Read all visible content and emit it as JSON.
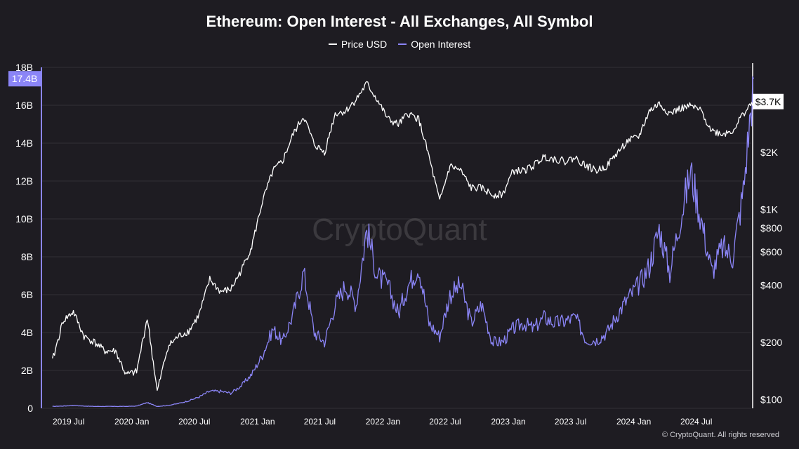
{
  "title": "Ethereum: Open Interest - All Exchanges, All Symbol",
  "legend": [
    {
      "label": "Price USD",
      "color": "#ffffff"
    },
    {
      "label": "Open Interest",
      "color": "#8b85f7"
    }
  ],
  "watermark": "CryptoQuant",
  "copyright": "© CryptoQuant. All rights reserved",
  "chart_data": {
    "type": "line",
    "title": "Ethereum: Open Interest - All Exchanges, All Symbol",
    "x_ticks": [
      "2019 Jul",
      "2020 Jan",
      "2020 Jul",
      "2021 Jan",
      "2021 Jul",
      "2022 Jan",
      "2022 Jul",
      "2023 Jan",
      "2023 Jul",
      "2024 Jan",
      "2024 Jul"
    ],
    "left_axis": {
      "ticks": [
        "0",
        "2B",
        "4B",
        "6B",
        "8B",
        "10B",
        "12B",
        "14B",
        "16B",
        "18B"
      ],
      "range": [
        0,
        18
      ],
      "unit": "B"
    },
    "right_axis": {
      "scale": "log",
      "ticks": [
        "$100",
        "$200",
        "$400",
        "$600",
        "$800",
        "$1K",
        "$2K"
      ],
      "tick_values": [
        100,
        200,
        400,
        600,
        800,
        1000,
        2000
      ],
      "range": [
        90,
        5600
      ]
    },
    "last_value_labels": {
      "left": "17.4B",
      "right": "$3.7K"
    },
    "grid": true,
    "colors": {
      "price": "#ffffff",
      "open_interest": "#8b85f7",
      "left_badge": "#8b85f7"
    },
    "series": [
      {
        "name": "Price USD",
        "axis": "right",
        "x": [
          "2019-05",
          "2019-06",
          "2019-07",
          "2019-08",
          "2019-09",
          "2019-10",
          "2019-11",
          "2019-12",
          "2020-01",
          "2020-02",
          "2020-03",
          "2020-04",
          "2020-05",
          "2020-06",
          "2020-07",
          "2020-08",
          "2020-09",
          "2020-10",
          "2020-11",
          "2020-12",
          "2021-01",
          "2021-02",
          "2021-03",
          "2021-04",
          "2021-05",
          "2021-06",
          "2021-07",
          "2021-08",
          "2021-09",
          "2021-10",
          "2021-11",
          "2021-12",
          "2022-01",
          "2022-02",
          "2022-03",
          "2022-04",
          "2022-05",
          "2022-06",
          "2022-07",
          "2022-08",
          "2022-09",
          "2022-10",
          "2022-11",
          "2022-12",
          "2023-01",
          "2023-02",
          "2023-03",
          "2023-04",
          "2023-05",
          "2023-06",
          "2023-07",
          "2023-08",
          "2023-09",
          "2023-10",
          "2023-11",
          "2023-12",
          "2024-01",
          "2024-02",
          "2024-03",
          "2024-04",
          "2024-05",
          "2024-06",
          "2024-07",
          "2024-08",
          "2024-09",
          "2024-10",
          "2024-11",
          "2024-12"
        ],
        "y": [
          160,
          260,
          290,
          215,
          200,
          180,
          180,
          135,
          140,
          270,
          110,
          190,
          215,
          230,
          280,
          430,
          370,
          380,
          480,
          640,
          1100,
          1600,
          1800,
          2500,
          3100,
          2200,
          2000,
          3200,
          3300,
          3800,
          4600,
          3800,
          3000,
          2800,
          3200,
          3000,
          1900,
          1100,
          1700,
          1600,
          1300,
          1300,
          1200,
          1200,
          1600,
          1600,
          1700,
          1900,
          1850,
          1800,
          1870,
          1700,
          1600,
          1700,
          2000,
          2300,
          2400,
          3300,
          3600,
          3200,
          3400,
          3500,
          3300,
          2600,
          2500,
          2600,
          3200,
          3700
        ]
      },
      {
        "name": "Open Interest",
        "axis": "left",
        "x": [
          "2019-05",
          "2019-06",
          "2019-07",
          "2019-08",
          "2019-09",
          "2019-10",
          "2019-11",
          "2019-12",
          "2020-01",
          "2020-02",
          "2020-03",
          "2020-04",
          "2020-05",
          "2020-06",
          "2020-07",
          "2020-08",
          "2020-09",
          "2020-10",
          "2020-11",
          "2020-12",
          "2021-01",
          "2021-02",
          "2021-03",
          "2021-04",
          "2021-05",
          "2021-06",
          "2021-07",
          "2021-08",
          "2021-09",
          "2021-10",
          "2021-11",
          "2021-12",
          "2022-01",
          "2022-02",
          "2022-03",
          "2022-04",
          "2022-05",
          "2022-06",
          "2022-07",
          "2022-08",
          "2022-09",
          "2022-10",
          "2022-11",
          "2022-12",
          "2023-01",
          "2023-02",
          "2023-03",
          "2023-04",
          "2023-05",
          "2023-06",
          "2023-07",
          "2023-08",
          "2023-09",
          "2023-10",
          "2023-11",
          "2023-12",
          "2024-01",
          "2024-02",
          "2024-03",
          "2024-04",
          "2024-05",
          "2024-06",
          "2024-07",
          "2024-08",
          "2024-09",
          "2024-10",
          "2024-11",
          "2024-12"
        ],
        "y": [
          0.1,
          0.12,
          0.15,
          0.12,
          0.1,
          0.1,
          0.1,
          0.1,
          0.12,
          0.3,
          0.1,
          0.15,
          0.25,
          0.4,
          0.6,
          0.9,
          0.9,
          0.8,
          1.2,
          1.8,
          2.8,
          4.2,
          3.5,
          5.0,
          7.2,
          4.0,
          3.5,
          5.5,
          6.5,
          5.5,
          9.5,
          7.0,
          6.5,
          5.0,
          6.5,
          7.5,
          4.5,
          3.8,
          6.0,
          6.5,
          4.5,
          5.5,
          3.5,
          3.5,
          4.2,
          4.5,
          4.2,
          4.8,
          4.5,
          4.6,
          4.8,
          3.6,
          3.6,
          4.0,
          5.0,
          5.8,
          6.5,
          7.5,
          9.5,
          7.2,
          10.0,
          12.5,
          10.0,
          7.2,
          8.5,
          8.0,
          11.5,
          17.4
        ]
      }
    ]
  }
}
